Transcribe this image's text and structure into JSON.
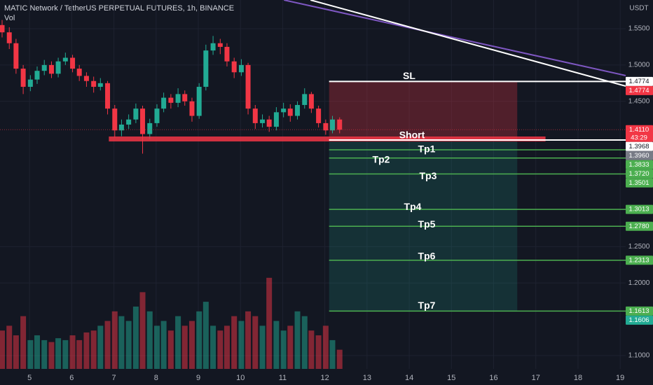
{
  "chart_data": {
    "type": "candlestick",
    "title": "MATIC Network / TetherUS PERPETUAL FUTURES, 1h, BINANCE",
    "volume_label": "Vol",
    "currency": "USDT",
    "x": [
      4.35,
      4.52,
      4.68,
      4.85,
      5.02,
      5.18,
      5.35,
      5.52,
      5.68,
      5.85,
      6.02,
      6.18,
      6.35,
      6.52,
      6.68,
      6.85,
      7.02,
      7.18,
      7.35,
      7.52,
      7.68,
      7.85,
      8.02,
      8.18,
      8.35,
      8.52,
      8.68,
      8.85,
      9.02,
      9.18,
      9.35,
      9.52,
      9.68,
      9.85,
      10.02,
      10.18,
      10.35,
      10.52,
      10.68,
      10.85,
      11.02,
      11.18,
      11.35,
      11.52,
      11.68,
      11.85,
      12.02,
      12.18,
      12.35
    ],
    "open": [
      1.555,
      1.545,
      1.53,
      1.495,
      1.47,
      1.48,
      1.492,
      1.5,
      1.488,
      1.505,
      1.51,
      1.495,
      1.485,
      1.478,
      1.47,
      1.475,
      1.44,
      1.41,
      1.418,
      1.425,
      1.44,
      1.405,
      1.42,
      1.44,
      1.455,
      1.448,
      1.46,
      1.45,
      1.43,
      1.47,
      1.52,
      1.53,
      1.525,
      1.505,
      1.49,
      1.5,
      1.44,
      1.42,
      1.425,
      1.415,
      1.435,
      1.44,
      1.43,
      1.445,
      1.46,
      1.44,
      1.42,
      1.41,
      1.425
    ],
    "high": [
      1.562,
      1.552,
      1.536,
      1.5,
      1.486,
      1.498,
      1.507,
      1.505,
      1.51,
      1.517,
      1.514,
      1.5,
      1.49,
      1.484,
      1.482,
      1.478,
      1.445,
      1.425,
      1.432,
      1.447,
      1.444,
      1.426,
      1.446,
      1.462,
      1.46,
      1.468,
      1.465,
      1.455,
      1.475,
      1.528,
      1.54,
      1.536,
      1.53,
      1.51,
      1.508,
      1.503,
      1.445,
      1.432,
      1.43,
      1.442,
      1.448,
      1.446,
      1.45,
      1.468,
      1.463,
      1.444,
      1.425,
      1.43,
      1.428
    ],
    "low": [
      1.538,
      1.522,
      1.488,
      1.46,
      1.464,
      1.474,
      1.486,
      1.482,
      1.483,
      1.5,
      1.49,
      1.478,
      1.47,
      1.462,
      1.465,
      1.432,
      1.4,
      1.402,
      1.412,
      1.42,
      1.378,
      1.398,
      1.415,
      1.435,
      1.44,
      1.442,
      1.444,
      1.422,
      1.426,
      1.465,
      1.514,
      1.515,
      1.498,
      1.482,
      1.485,
      1.432,
      1.412,
      1.414,
      1.408,
      1.41,
      1.428,
      1.422,
      1.425,
      1.44,
      1.434,
      1.414,
      1.404,
      1.406,
      1.406
    ],
    "close": [
      1.545,
      1.53,
      1.495,
      1.47,
      1.48,
      1.492,
      1.5,
      1.488,
      1.505,
      1.51,
      1.495,
      1.485,
      1.478,
      1.47,
      1.475,
      1.44,
      1.41,
      1.418,
      1.425,
      1.44,
      1.405,
      1.42,
      1.44,
      1.455,
      1.448,
      1.46,
      1.45,
      1.43,
      1.47,
      1.52,
      1.53,
      1.525,
      1.505,
      1.49,
      1.5,
      1.44,
      1.42,
      1.425,
      1.415,
      1.435,
      1.44,
      1.43,
      1.445,
      1.46,
      1.44,
      1.42,
      1.41,
      1.425,
      1.411
    ],
    "volume": [
      40,
      45,
      35,
      55,
      30,
      35,
      30,
      28,
      32,
      30,
      35,
      30,
      38,
      40,
      45,
      50,
      60,
      55,
      50,
      65,
      80,
      60,
      45,
      50,
      40,
      55,
      45,
      50,
      60,
      70,
      45,
      40,
      45,
      55,
      50,
      60,
      55,
      45,
      95,
      50,
      40,
      45,
      60,
      55,
      40,
      35,
      45,
      30,
      20
    ],
    "up_color": "#22ab94",
    "down_color": "#f23645",
    "xlim": [
      4.3,
      19.13
    ],
    "xticks": [
      5,
      6,
      7,
      8,
      9,
      10,
      11,
      12,
      13,
      14,
      15,
      16,
      17,
      18,
      19
    ],
    "ylim": [
      1.0817,
      1.5895
    ],
    "yticks": [
      {
        "value": 1.55,
        "label": "1.5500"
      },
      {
        "value": 1.5,
        "label": "1.5000"
      },
      {
        "value": 1.45,
        "label": "1.4500"
      },
      {
        "value": 1.25,
        "label": "1.2500"
      },
      {
        "value": 1.2,
        "label": "1.2000"
      },
      {
        "value": 1.1,
        "label": "1.1000"
      }
    ],
    "vlim": [
      0,
      100
    ],
    "grid": true,
    "last_price": {
      "value": 1.411,
      "label": "1.4110",
      "countdown": "43:29",
      "color": "#f23645"
    },
    "levels": [
      {
        "name": "SL",
        "value": 1.4774,
        "label": "1.4774",
        "color": "#ffffff"
      },
      {
        "name": "Short",
        "value": 1.3968,
        "label": "1.3968",
        "color": "#ffffff"
      },
      {
        "name": "Tp1",
        "value": 1.3833,
        "label": "1.3833",
        "color": "#4caf50"
      },
      {
        "name": "Tp2",
        "value": 1.372,
        "label": "1.3720",
        "color": "#4caf50"
      },
      {
        "name": "Tp3",
        "value": 1.3501,
        "label": "1.3501",
        "color": "#4caf50"
      },
      {
        "name": "Tp4",
        "value": 1.3013,
        "label": "1.3013",
        "color": "#4caf50"
      },
      {
        "name": "Tp5",
        "value": 1.278,
        "label": "1.2780",
        "color": "#4caf50"
      },
      {
        "name": "Tp6",
        "value": 1.2313,
        "label": "1.2313",
        "color": "#4caf50"
      },
      {
        "name": "Tp7",
        "value": 1.1613,
        "label": "1.1613",
        "color": "#4caf50"
      }
    ],
    "axis_labels": [
      {
        "value": 1.4774,
        "label": "1.4774",
        "color": "#f23645"
      },
      {
        "value": 1.396,
        "label": "1.3960",
        "color": "#787b86"
      },
      {
        "value": 1.1606,
        "label": "1.1606",
        "color": "#22ab94"
      }
    ],
    "position": {
      "entry": 1.3968,
      "stop": 1.4774,
      "target": 1.1606,
      "x": [
        12.1,
        16.56
      ]
    },
    "zone": {
      "x": [
        6.88,
        17.23
      ],
      "y": [
        1.3948,
        1.4016
      ],
      "color": "#f23645"
    },
    "trendlines": [
      {
        "x": [
          11.03,
          19.13
        ],
        "y": [
          1.5895,
          1.4855
        ],
        "color": "#7e57c2"
      },
      {
        "x": [
          11.66,
          19.13
        ],
        "y": [
          1.5895,
          1.471
        ],
        "color": "#ffffff"
      }
    ]
  }
}
